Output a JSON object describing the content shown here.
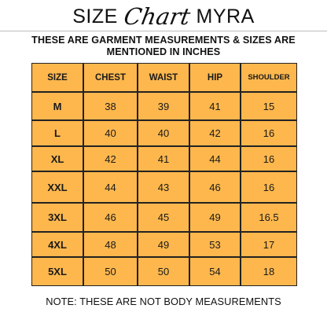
{
  "title": {
    "word_left": "SIZE",
    "script_word": "Chart",
    "word_right": "MYRA"
  },
  "subtitle": {
    "line1": "THESE ARE GARMENT MEASUREMENTS & SIZES ARE",
    "line2": "MENTIONED IN INCHES"
  },
  "table": {
    "headers": [
      "SIZE",
      "CHEST",
      "WAIST",
      "HIP",
      "SHOULDER"
    ],
    "rows": [
      [
        "M",
        "38",
        "39",
        "41",
        "15"
      ],
      [
        "L",
        "40",
        "40",
        "42",
        "16"
      ],
      [
        "XL",
        "42",
        "41",
        "44",
        "16"
      ],
      [
        "XXL",
        "44",
        "43",
        "46",
        "16"
      ],
      [
        "3XL",
        "46",
        "45",
        "49",
        "16.5"
      ],
      [
        "4XL",
        "48",
        "49",
        "53",
        "17"
      ],
      [
        "5XL",
        "50",
        "50",
        "54",
        "18"
      ]
    ]
  },
  "note": "NOTE: THESE ARE NOT BODY MEASUREMENTS",
  "colors": {
    "table_fill": "#fdb74d",
    "grid_line": "#222222",
    "text": "#111111"
  }
}
